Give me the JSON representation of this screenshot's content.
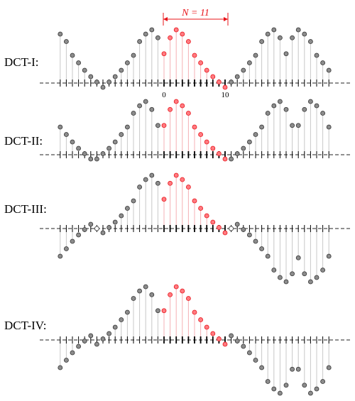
{
  "annotation": {
    "text": "N = 11",
    "color": "#e8141a"
  },
  "axis_labels": {
    "zero": "0",
    "ten": "10"
  },
  "colors": {
    "gray_fill": "#8c8c8c",
    "gray_stem": "#c8c8c8",
    "red_fill": "#ff7a80",
    "red_stem": "#f4b0b4",
    "red_marker_stroke": "#e8141a",
    "axis": "#222222"
  },
  "panels": [
    {
      "id": "dct-1",
      "label": "DCT-I:",
      "boundary": "even-even",
      "zero_markers": false
    },
    {
      "id": "dct-2",
      "label": "DCT-II:",
      "boundary": "even-half",
      "zero_markers": false
    },
    {
      "id": "dct-3",
      "label": "DCT-III:",
      "boundary": "even-odd",
      "zero_markers": true
    },
    {
      "id": "dct-4",
      "label": "DCT-IV:",
      "boundary": "half-odd",
      "zero_markers": false
    }
  ],
  "red_sequence": [
    0.55,
    0.85,
    1.0,
    0.92,
    0.78,
    0.52,
    0.38,
    0.24,
    0.12,
    0.02,
    -0.08
  ]
}
